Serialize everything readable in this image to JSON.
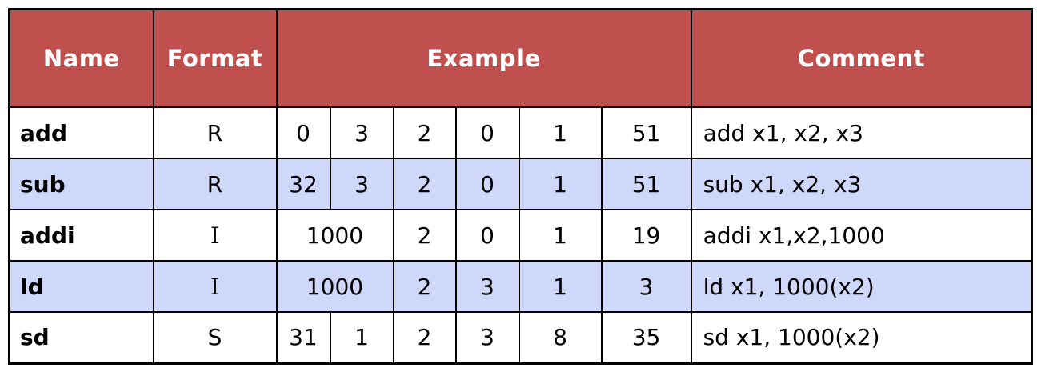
{
  "headers": {
    "name": "Name",
    "format": "Format",
    "example": "Example",
    "comment": "Comment"
  },
  "rows": [
    {
      "name": "add",
      "format": "R",
      "fields": [
        "0",
        "3",
        "2",
        "0",
        "1",
        "51"
      ],
      "comment": "add x1, x2, x3"
    },
    {
      "name": "sub",
      "format": "R",
      "fields": [
        "32",
        "3",
        "2",
        "0",
        "1",
        "51"
      ],
      "comment": "sub x1, x2, x3"
    },
    {
      "name": "addi",
      "format": "I",
      "imm": "1000",
      "fields": [
        "2",
        "0",
        "1",
        "19"
      ],
      "comment": "addi x1,x2,1000"
    },
    {
      "name": "ld",
      "format": "I",
      "imm": "1000",
      "fields": [
        "2",
        "3",
        "1",
        "3"
      ],
      "comment": "ld x1, 1000(x2)"
    },
    {
      "name": "sd",
      "format": "S",
      "fields": [
        "31",
        "1",
        "2",
        "3",
        "8",
        "35"
      ],
      "comment": "sd x1, 1000(x2)"
    }
  ],
  "colors": {
    "header_bg": "#c0504d",
    "header_text": "#ffffff",
    "row_alt_bg": "#cfd8fb",
    "row_bg": "#ffffff"
  }
}
